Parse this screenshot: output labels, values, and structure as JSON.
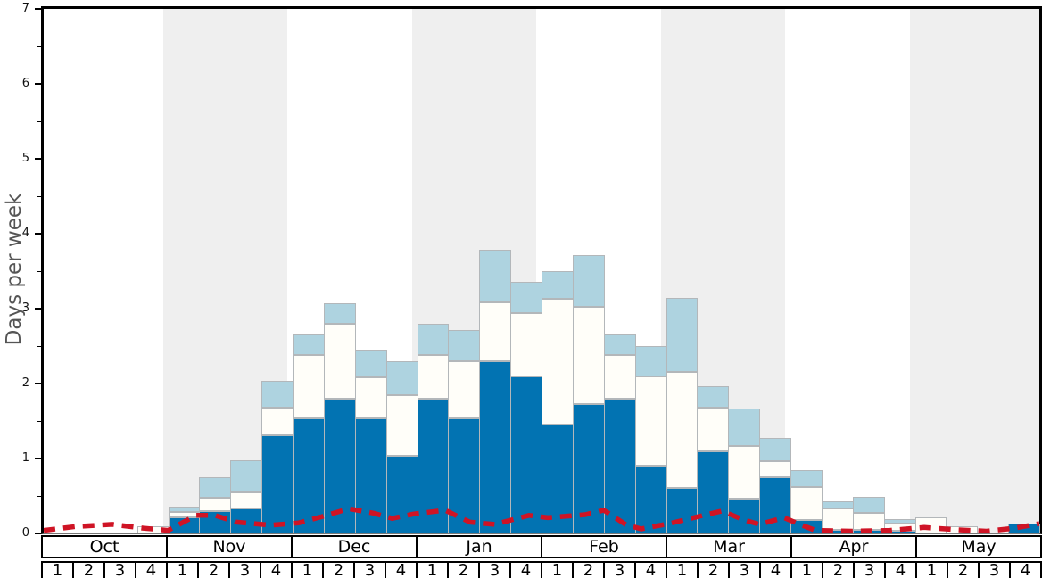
{
  "colors": {
    "dark_blue": "#0273b2",
    "light_blue": "#aed3e0",
    "white_bar": "#fffef9",
    "bar_border": "#b3b7ba",
    "band_gray": "#efefef",
    "red_line": "#cf1425",
    "axis_black": "#000000",
    "zero_line": "#777777",
    "tick_label": "#111111",
    "axis_title": "#555555"
  },
  "chart_data": {
    "type": "bar",
    "stacked": true,
    "title": "",
    "ylabel": "Days per week",
    "xlabel": "",
    "ylim": [
      0,
      7
    ],
    "y_major_ticks": [
      "0",
      "1",
      "2",
      "3",
      "4",
      "5",
      "6",
      "7"
    ],
    "y_minor_step": 0.5,
    "grid": false,
    "legend": "none",
    "months": [
      "Oct",
      "Nov",
      "Dec",
      "Jan",
      "Feb",
      "Mar",
      "Apr",
      "May"
    ],
    "weeks_per_month": 4,
    "week_labels": [
      "1",
      "2",
      "3",
      "4"
    ],
    "shaded_months": [
      "Nov",
      "Jan",
      "Mar",
      "May"
    ],
    "units": "days per week",
    "series": [
      {
        "name": "dark-blue-days",
        "color_key": "dark_blue",
        "values": [
          0,
          0,
          0,
          0,
          0.21,
          0.3,
          0.33,
          1.31,
          1.53,
          1.8,
          1.53,
          1.04,
          1.8,
          1.53,
          2.3,
          2.1,
          1.45,
          1.73,
          1.8,
          0.9,
          0.61,
          1.1,
          0.47,
          0.75,
          0.18,
          0.05,
          0.05,
          0.03,
          0,
          0,
          0,
          0.13
        ]
      },
      {
        "name": "white-days",
        "color_key": "white_bar",
        "values": [
          0,
          0,
          0,
          0.1,
          0.08,
          0.18,
          0.22,
          0.37,
          0.85,
          1.0,
          0.55,
          0.8,
          0.58,
          0.77,
          0.78,
          0.84,
          1.68,
          1.29,
          0.58,
          1.2,
          1.55,
          0.58,
          0.7,
          0.22,
          0.44,
          0.28,
          0.22,
          0.1,
          0.21,
          0.09,
          0,
          0
        ]
      },
      {
        "name": "light-blue-days",
        "color_key": "light_blue",
        "values": [
          0,
          0,
          0,
          0,
          0.07,
          0.27,
          0.43,
          0.36,
          0.28,
          0.27,
          0.37,
          0.46,
          0.42,
          0.42,
          0.71,
          0.42,
          0.37,
          0.7,
          0.27,
          0.4,
          0.98,
          0.28,
          0.5,
          0.3,
          0.22,
          0.1,
          0.22,
          0.06,
          0,
          0,
          0,
          0
        ]
      }
    ],
    "line_series": {
      "name": "red-dashed-line",
      "color_key": "red_line",
      "style": "dashed",
      "points_week_value": [
        [
          0,
          0.04
        ],
        [
          1,
          0.09
        ],
        [
          2.2,
          0.12
        ],
        [
          3.2,
          0.07
        ],
        [
          4,
          0.04
        ],
        [
          4.9,
          0.24
        ],
        [
          5.5,
          0.24
        ],
        [
          6.2,
          0.15
        ],
        [
          7.3,
          0.11
        ],
        [
          8.2,
          0.14
        ],
        [
          9,
          0.23
        ],
        [
          9.8,
          0.33
        ],
        [
          10.6,
          0.27
        ],
        [
          11.2,
          0.2
        ],
        [
          11.9,
          0.26
        ],
        [
          12.9,
          0.31
        ],
        [
          13.7,
          0.15
        ],
        [
          14.5,
          0.12
        ],
        [
          15.6,
          0.24
        ],
        [
          16.2,
          0.21
        ],
        [
          17.4,
          0.25
        ],
        [
          18,
          0.31
        ],
        [
          18.7,
          0.12
        ],
        [
          19.2,
          0.06
        ],
        [
          20.1,
          0.13
        ],
        [
          21.2,
          0.24
        ],
        [
          21.8,
          0.3
        ],
        [
          22.5,
          0.18
        ],
        [
          23,
          0.12
        ],
        [
          23.8,
          0.21
        ],
        [
          24.3,
          0.12
        ],
        [
          24.8,
          0.04
        ],
        [
          26,
          0.03
        ],
        [
          27.2,
          0.04
        ],
        [
          28.3,
          0.08
        ],
        [
          29.3,
          0.05
        ],
        [
          30.3,
          0.03
        ],
        [
          31.2,
          0.07
        ],
        [
          32,
          0.13
        ]
      ]
    }
  }
}
